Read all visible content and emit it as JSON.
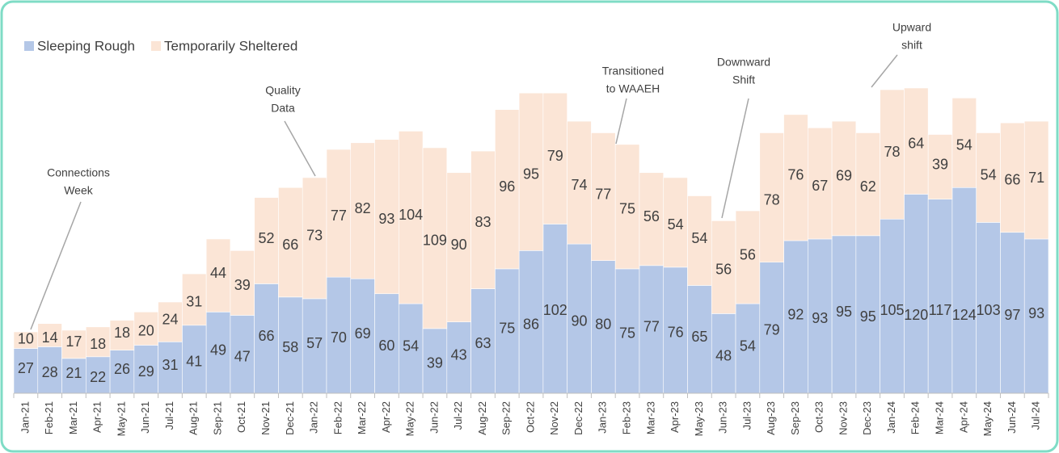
{
  "chart_data": {
    "type": "stacked-bar",
    "categories": [
      "Jan-21",
      "Feb-21",
      "Mar-21",
      "Apr-21",
      "May-21",
      "Jun-21",
      "Jul-21",
      "Aug-21",
      "Sep-21",
      "Oct-21",
      "Nov-21",
      "Dec-21",
      "Jan-22",
      "Feb-22",
      "Mar-22",
      "Apr-22",
      "May-22",
      "Jun-22",
      "Jul-22",
      "Aug-22",
      "Sep-22",
      "Oct-22",
      "Nov-22",
      "Dec-22",
      "Jan-23",
      "Feb-23",
      "Mar-23",
      "Apr-23",
      "May-23",
      "Jun-23",
      "Jul-23",
      "Aug-23",
      "Sep-23",
      "Oct-23",
      "Nov-23",
      "Dec-23",
      "Jan-24",
      "Feb-24",
      "Mar-24",
      "Apr-24",
      "May-24",
      "Jun-24",
      "Jul-24"
    ],
    "series": [
      {
        "name": "Sleeping Rough",
        "color": "#b4c7e7",
        "values": [
          27,
          28,
          21,
          22,
          26,
          29,
          31,
          41,
          49,
          47,
          66,
          58,
          57,
          70,
          69,
          60,
          54,
          39,
          43,
          63,
          75,
          86,
          102,
          90,
          80,
          75,
          77,
          76,
          65,
          48,
          54,
          79,
          92,
          93,
          95,
          95,
          105,
          120,
          117,
          124,
          103,
          97,
          93
        ]
      },
      {
        "name": "Temporarily Sheltered",
        "color": "#fbe5d6",
        "values": [
          10,
          14,
          17,
          18,
          18,
          20,
          24,
          31,
          44,
          39,
          52,
          66,
          73,
          77,
          82,
          93,
          104,
          109,
          90,
          83,
          96,
          95,
          79,
          74,
          77,
          75,
          56,
          54,
          54,
          56,
          56,
          78,
          76,
          67,
          69,
          62,
          78,
          64,
          39,
          54,
          54,
          66,
          71
        ]
      }
    ],
    "legend": "top-left",
    "annotations": [
      {
        "lines": [
          "Connections",
          "Week"
        ]
      },
      {
        "lines": [
          "Quality",
          "Data"
        ]
      },
      {
        "lines": [
          "Transitioned",
          "to WAAEH"
        ]
      },
      {
        "lines": [
          "Downward",
          "Shift"
        ]
      },
      {
        "lines": [
          "Upward",
          "shift"
        ]
      }
    ]
  }
}
